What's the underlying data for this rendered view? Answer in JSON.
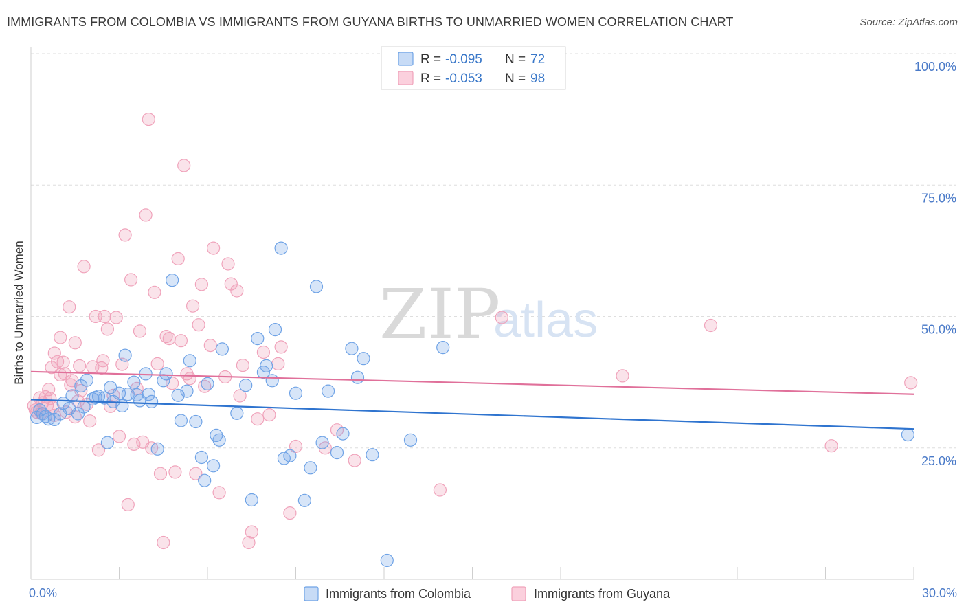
{
  "title": "IMMIGRANTS FROM COLOMBIA VS IMMIGRANTS FROM GUYANA BIRTHS TO UNMARRIED WOMEN CORRELATION CHART",
  "source": "Source: ZipAtlas.com",
  "watermark": {
    "zip": "ZIP",
    "atlas": "atlas"
  },
  "legend": {
    "rows": [
      {
        "r_label": "R =",
        "r_value": "-0.095",
        "n_label": "N =",
        "n_value": "72"
      },
      {
        "r_label": "R =",
        "r_value": "-0.053",
        "n_label": "N =",
        "n_value": "98"
      }
    ]
  },
  "chart_data": {
    "type": "scatter",
    "title": "IMMIGRANTS FROM COLOMBIA VS IMMIGRANTS FROM GUYANA BIRTHS TO UNMARRIED WOMEN CORRELATION CHART",
    "xlabel": "",
    "ylabel": "Births to Unmarried Women",
    "xlim": [
      0,
      30
    ],
    "ylim": [
      0,
      100
    ],
    "x_tick_labels": [
      "0.0%",
      "30.0%"
    ],
    "y_ticks": [
      25,
      50,
      75,
      100
    ],
    "y_tick_labels": [
      "25.0%",
      "50.0%",
      "75.0%",
      "100.0%"
    ],
    "grid": true,
    "legend_position": "top-center",
    "colors": {
      "colombia": "#6fa3e6",
      "guyana": "#f0a3bb",
      "colombia_line": "#2f74cf",
      "guyana_line": "#e0709a"
    },
    "series": [
      {
        "name": "Immigrants from Colombia",
        "color": "#6fa3e6",
        "trend": [
          [
            0,
            34.2
          ],
          [
            30,
            28.6
          ]
        ],
        "points": [
          [
            0.2,
            30.8
          ],
          [
            0.3,
            32.2
          ],
          [
            0.4,
            31.5
          ],
          [
            0.5,
            31.0
          ],
          [
            0.6,
            30.5
          ],
          [
            0.8,
            30.4
          ],
          [
            1.0,
            31.5
          ],
          [
            1.1,
            33.5
          ],
          [
            1.3,
            32.5
          ],
          [
            1.4,
            34.9
          ],
          [
            1.6,
            31.5
          ],
          [
            1.7,
            36.8
          ],
          [
            1.8,
            32.8
          ],
          [
            1.9,
            37.9
          ],
          [
            2.1,
            34.3
          ],
          [
            2.2,
            34.6
          ],
          [
            2.3,
            34.8
          ],
          [
            2.5,
            34.5
          ],
          [
            2.6,
            26.0
          ],
          [
            2.7,
            36.5
          ],
          [
            2.8,
            33.8
          ],
          [
            3.0,
            35.4
          ],
          [
            3.1,
            33.0
          ],
          [
            3.2,
            42.6
          ],
          [
            3.3,
            35.2
          ],
          [
            3.5,
            37.5
          ],
          [
            3.6,
            35.1
          ],
          [
            3.7,
            34.0
          ],
          [
            3.9,
            39.1
          ],
          [
            4.0,
            35.2
          ],
          [
            4.1,
            33.8
          ],
          [
            4.3,
            24.8
          ],
          [
            4.5,
            37.8
          ],
          [
            4.6,
            39.1
          ],
          [
            4.8,
            56.9
          ],
          [
            5.0,
            35.0
          ],
          [
            5.1,
            30.2
          ],
          [
            5.3,
            35.8
          ],
          [
            5.4,
            41.6
          ],
          [
            5.6,
            30.0
          ],
          [
            5.8,
            23.2
          ],
          [
            5.9,
            18.8
          ],
          [
            6.0,
            37.2
          ],
          [
            6.2,
            21.6
          ],
          [
            6.3,
            27.4
          ],
          [
            6.4,
            26.5
          ],
          [
            6.5,
            43.8
          ],
          [
            7.0,
            31.6
          ],
          [
            7.3,
            36.9
          ],
          [
            7.5,
            15.1
          ],
          [
            7.7,
            45.8
          ],
          [
            7.9,
            39.4
          ],
          [
            8.0,
            40.6
          ],
          [
            8.2,
            37.8
          ],
          [
            8.3,
            47.5
          ],
          [
            8.5,
            63.0
          ],
          [
            8.6,
            23.0
          ],
          [
            8.8,
            23.5
          ],
          [
            9.0,
            35.4
          ],
          [
            9.3,
            15.0
          ],
          [
            9.5,
            21.2
          ],
          [
            9.7,
            55.7
          ],
          [
            9.9,
            26.0
          ],
          [
            10.1,
            35.8
          ],
          [
            10.4,
            24.1
          ],
          [
            10.6,
            27.7
          ],
          [
            10.9,
            43.9
          ],
          [
            11.1,
            38.4
          ],
          [
            11.3,
            42.0
          ],
          [
            11.6,
            23.7
          ],
          [
            12.1,
            3.6
          ],
          [
            12.9,
            26.5
          ],
          [
            14.0,
            44.1
          ],
          [
            29.8,
            27.5
          ]
        ]
      },
      {
        "name": "Immigrants from Guyana",
        "color": "#f0a3bb",
        "trend": [
          [
            0,
            39.5
          ],
          [
            30,
            35.2
          ]
        ],
        "points": [
          [
            0.1,
            33.0
          ],
          [
            0.2,
            31.8
          ],
          [
            0.3,
            34.5
          ],
          [
            0.4,
            33.6
          ],
          [
            0.5,
            34.7
          ],
          [
            0.6,
            36.1
          ],
          [
            0.7,
            40.3
          ],
          [
            0.8,
            43.0
          ],
          [
            0.8,
            31.2
          ],
          [
            0.9,
            41.4
          ],
          [
            1.0,
            38.9
          ],
          [
            1.0,
            46.0
          ],
          [
            1.1,
            41.3
          ],
          [
            1.2,
            31.8
          ],
          [
            1.3,
            51.8
          ],
          [
            1.4,
            37.8
          ],
          [
            1.5,
            45.0
          ],
          [
            1.5,
            30.9
          ],
          [
            1.6,
            33.9
          ],
          [
            1.7,
            35.9
          ],
          [
            1.8,
            59.5
          ],
          [
            1.9,
            33.3
          ],
          [
            2.0,
            30.1
          ],
          [
            2.1,
            40.4
          ],
          [
            2.2,
            50.0
          ],
          [
            2.3,
            24.6
          ],
          [
            2.4,
            40.2
          ],
          [
            2.5,
            50.0
          ],
          [
            2.6,
            47.6
          ],
          [
            2.7,
            32.9
          ],
          [
            2.8,
            35.0
          ],
          [
            2.9,
            49.8
          ],
          [
            3.0,
            27.2
          ],
          [
            3.1,
            40.9
          ],
          [
            3.2,
            65.5
          ],
          [
            3.3,
            14.2
          ],
          [
            3.4,
            57.0
          ],
          [
            3.5,
            25.7
          ],
          [
            3.6,
            36.3
          ],
          [
            3.7,
            47.2
          ],
          [
            3.8,
            26.1
          ],
          [
            3.9,
            69.3
          ],
          [
            4.0,
            87.5
          ],
          [
            4.1,
            25.0
          ],
          [
            4.2,
            54.6
          ],
          [
            4.3,
            41.0
          ],
          [
            4.4,
            20.1
          ],
          [
            4.5,
            7.0
          ],
          [
            4.6,
            46.2
          ],
          [
            4.7,
            45.8
          ],
          [
            4.8,
            37.3
          ],
          [
            4.9,
            20.4
          ],
          [
            5.0,
            61.0
          ],
          [
            5.1,
            45.4
          ],
          [
            5.2,
            78.7
          ],
          [
            5.3,
            39.1
          ],
          [
            5.4,
            38.2
          ],
          [
            5.5,
            52.0
          ],
          [
            5.6,
            20.1
          ],
          [
            5.7,
            48.4
          ],
          [
            5.8,
            56.1
          ],
          [
            5.9,
            36.7
          ],
          [
            6.1,
            44.5
          ],
          [
            6.2,
            63.0
          ],
          [
            6.4,
            16.5
          ],
          [
            6.6,
            38.5
          ],
          [
            6.7,
            60.0
          ],
          [
            6.8,
            56.2
          ],
          [
            7.0,
            54.9
          ],
          [
            7.1,
            34.9
          ],
          [
            7.2,
            40.7
          ],
          [
            7.4,
            7.0
          ],
          [
            7.5,
            9.0
          ],
          [
            7.7,
            30.5
          ],
          [
            7.9,
            43.2
          ],
          [
            8.1,
            31.3
          ],
          [
            8.4,
            41.0
          ],
          [
            8.5,
            44.2
          ],
          [
            8.8,
            12.6
          ],
          [
            9.0,
            25.3
          ],
          [
            10.0,
            25.0
          ],
          [
            10.4,
            28.4
          ],
          [
            11.0,
            22.6
          ],
          [
            13.9,
            17.0
          ],
          [
            16.0,
            49.8
          ],
          [
            20.1,
            38.7
          ],
          [
            23.1,
            48.3
          ],
          [
            27.2,
            25.4
          ],
          [
            29.9,
            37.4
          ],
          [
            0.15,
            32.2
          ],
          [
            0.35,
            31.6
          ],
          [
            0.55,
            33.1
          ],
          [
            0.65,
            34.4
          ],
          [
            0.75,
            32.7
          ],
          [
            1.15,
            39.1
          ],
          [
            1.35,
            37.0
          ],
          [
            1.65,
            40.6
          ],
          [
            2.45,
            41.6
          ]
        ]
      }
    ]
  },
  "bottom_legend": {
    "items": [
      {
        "label": "Immigrants from Colombia"
      },
      {
        "label": "Immigrants from Guyana"
      }
    ]
  }
}
